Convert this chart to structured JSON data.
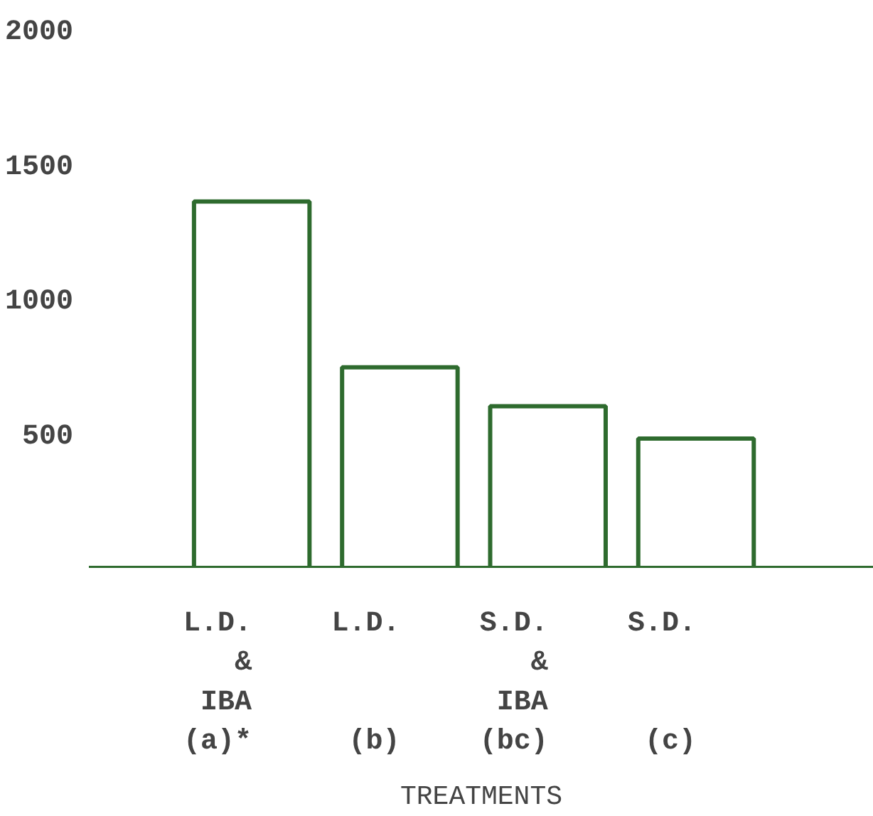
{
  "chart_data": {
    "type": "bar",
    "xlabel": "TREATMENTS",
    "categories": [
      "L.D.\n&\nIBA\n(a)*",
      "L.D.\n\n\n(b)",
      "S.D.\n&\nIBA\n(bc)",
      "S.D.\n\n\n(c)"
    ],
    "values": [
      1360,
      745,
      600,
      480
    ],
    "color": "#2e6b2e",
    "ylim": [
      0,
      2000
    ],
    "yticks": [
      500,
      1000,
      1500,
      2000
    ],
    "grid": false
  }
}
